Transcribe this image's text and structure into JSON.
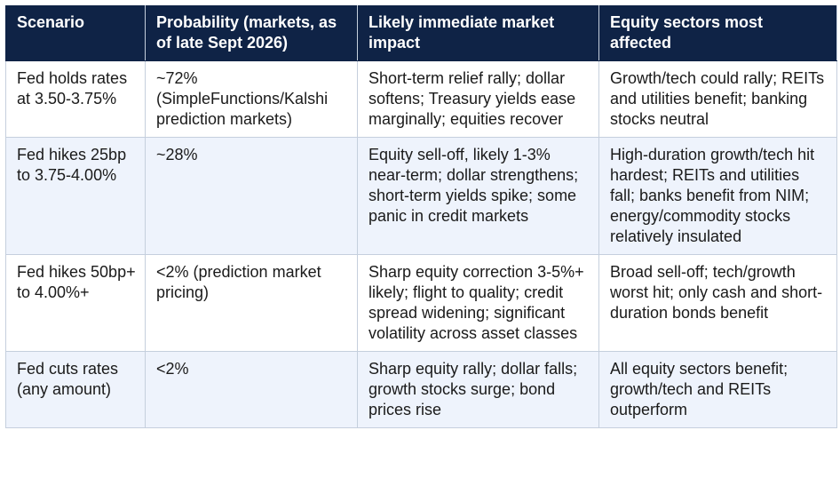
{
  "table": {
    "header": [
      "Scenario",
      "Probability (markets, as of late Sept 2026)",
      "Likely immediate market impact",
      "Equity sectors most affected"
    ],
    "rows": [
      [
        "Fed holds rates at 3.50-3.75%",
        "~72% (SimpleFunctions/Kalshi prediction markets)",
        "Short-term relief rally; dollar softens; Treasury yields ease marginally; equities recover",
        "Growth/tech could rally; REITs and utilities benefit; banking stocks neutral"
      ],
      [
        "Fed hikes 25bp to 3.75-4.00%",
        "~28%",
        "Equity sell-off, likely 1-3% near-term; dollar strengthens; short-term yields spike; some panic in credit markets",
        "High-duration growth/tech hit hardest; REITs and utilities fall; banks benefit from NIM; energy/commodity stocks relatively insulated"
      ],
      [
        "Fed hikes 50bp+ to 4.00%+",
        "<2% (prediction market pricing)",
        "Sharp equity correction 3-5%+ likely; flight to quality; credit spread widening; significant volatility across asset classes",
        "Broad sell-off; tech/growth worst hit; only cash and short-duration bonds benefit"
      ],
      [
        "Fed cuts rates (any amount)",
        "<2%",
        "Sharp equity rally; dollar falls; growth stocks surge; bond prices rise",
        "All equity sectors benefit; growth/tech and REITs outperform"
      ]
    ]
  }
}
